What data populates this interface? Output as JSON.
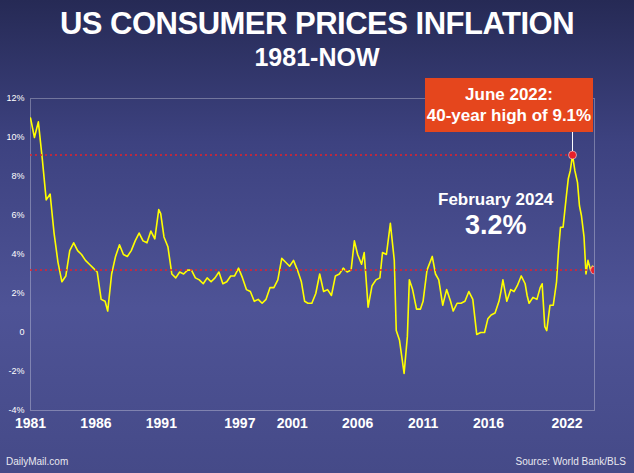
{
  "chart_data": {
    "type": "line",
    "title": "US CONSUMER PRICES INFLATION",
    "subtitle": "1981-NOW",
    "color": "#ffff00",
    "grid": false,
    "x": [
      1981.0,
      1981.3,
      1981.6,
      1981.9,
      1982.2,
      1982.5,
      1982.8,
      1983.1,
      1983.4,
      1983.7,
      1984.0,
      1984.3,
      1984.6,
      1984.9,
      1985.2,
      1985.5,
      1985.8,
      1986.1,
      1986.4,
      1986.7,
      1986.9,
      1987.2,
      1987.5,
      1987.8,
      1988.1,
      1988.4,
      1988.7,
      1989.0,
      1989.3,
      1989.6,
      1989.9,
      1990.2,
      1990.5,
      1990.8,
      1990.95,
      1991.2,
      1991.5,
      1991.8,
      1992.1,
      1992.4,
      1992.7,
      1993.0,
      1993.3,
      1993.6,
      1993.9,
      1994.2,
      1994.5,
      1994.8,
      1995.1,
      1995.4,
      1995.7,
      1996.0,
      1996.3,
      1996.6,
      1996.9,
      1997.2,
      1997.5,
      1997.8,
      1998.1,
      1998.4,
      1998.7,
      1999.0,
      1999.3,
      1999.6,
      1999.9,
      2000.2,
      2000.5,
      2000.8,
      2001.1,
      2001.4,
      2001.7,
      2001.95,
      2002.2,
      2002.5,
      2002.8,
      2003.1,
      2003.4,
      2003.7,
      2004.0,
      2004.3,
      2004.6,
      2004.9,
      2005.2,
      2005.5,
      2005.75,
      2006.0,
      2006.3,
      2006.5,
      2006.8,
      2007.1,
      2007.4,
      2007.7,
      2007.9,
      2008.2,
      2008.5,
      2008.8,
      2008.95,
      2009.2,
      2009.55,
      2009.8,
      2009.95,
      2010.2,
      2010.5,
      2010.8,
      2011.0,
      2011.3,
      2011.7,
      2011.95,
      2012.2,
      2012.5,
      2012.8,
      2013.1,
      2013.3,
      2013.6,
      2013.9,
      2014.2,
      2014.5,
      2014.8,
      2014.95,
      2015.1,
      2015.4,
      2015.7,
      2015.95,
      2016.2,
      2016.5,
      2016.8,
      2016.95,
      2017.1,
      2017.4,
      2017.7,
      2017.95,
      2018.2,
      2018.5,
      2018.8,
      2018.95,
      2019.1,
      2019.4,
      2019.7,
      2019.95,
      2020.1,
      2020.3,
      2020.45,
      2020.7,
      2020.95,
      2021.2,
      2021.35,
      2021.5,
      2021.7,
      2021.95,
      2022.1,
      2022.25,
      2022.42,
      2022.6,
      2022.8,
      2022.95,
      2023.1,
      2023.3,
      2023.45,
      2023.6,
      2023.8,
      2023.95,
      2024.1
    ],
    "values": [
      11.0,
      10.0,
      10.8,
      8.9,
      6.8,
      7.1,
      5.1,
      3.6,
      2.6,
      2.9,
      4.2,
      4.6,
      4.2,
      4.0,
      3.7,
      3.5,
      3.3,
      3.1,
      1.7,
      1.6,
      1.1,
      3.0,
      3.9,
      4.5,
      4.0,
      3.9,
      4.2,
      4.7,
      5.1,
      4.7,
      4.6,
      5.2,
      4.8,
      6.3,
      6.1,
      4.9,
      4.4,
      3.0,
      2.8,
      3.1,
      3.0,
      3.2,
      3.2,
      2.8,
      2.7,
      2.5,
      2.8,
      2.6,
      2.8,
      3.1,
      2.5,
      2.6,
      2.9,
      2.9,
      3.3,
      2.8,
      2.2,
      2.1,
      1.6,
      1.7,
      1.5,
      1.7,
      2.3,
      2.3,
      2.7,
      3.8,
      3.6,
      3.4,
      3.7,
      3.2,
      2.6,
      1.6,
      1.5,
      1.5,
      2.0,
      3.0,
      2.1,
      2.2,
      1.9,
      2.9,
      3.0,
      3.3,
      3.1,
      3.2,
      4.7,
      4.0,
      3.5,
      4.1,
      1.3,
      2.4,
      2.7,
      2.8,
      4.1,
      4.0,
      5.6,
      3.7,
      0.1,
      -0.4,
      -2.1,
      -0.2,
      2.7,
      2.2,
      1.2,
      1.2,
      1.6,
      3.2,
      3.9,
      3.0,
      2.7,
      1.4,
      2.2,
      1.6,
      1.1,
      1.5,
      1.5,
      1.6,
      2.1,
      1.7,
      0.8,
      -0.1,
      0.0,
      0.0,
      0.7,
      0.9,
      1.0,
      1.6,
      2.1,
      2.7,
      1.6,
      2.2,
      2.1,
      2.4,
      2.9,
      2.5,
      1.9,
      1.5,
      1.8,
      1.7,
      2.3,
      2.5,
      0.3,
      0.1,
      1.4,
      1.4,
      2.6,
      4.2,
      5.4,
      5.4,
      7.0,
      7.9,
      8.3,
      9.1,
      8.3,
      7.7,
      6.5,
      6.0,
      4.9,
      3.0,
      3.7,
      3.2,
      3.4,
      3.2
    ],
    "xlim": [
      1981.0,
      2024.1
    ],
    "xticks": [
      1981,
      1986,
      1991,
      1997,
      2001,
      2006,
      2011,
      2016,
      2022
    ],
    "ylim": [
      -4,
      12
    ],
    "yticks": [
      {
        "value": 12,
        "label": "12%"
      },
      {
        "value": 10,
        "label": "10%"
      },
      {
        "value": 8,
        "label": "8%"
      },
      {
        "value": 6,
        "label": "6%"
      },
      {
        "value": 4,
        "label": "4%"
      },
      {
        "value": 2,
        "label": "2%"
      },
      0,
      {
        "value": -2,
        "label": "-2%"
      },
      {
        "value": -4,
        "label": "-4%"
      }
    ],
    "annotations": [
      {
        "text": [
          "June 2022:",
          "40-year high of 9.1%"
        ],
        "x": 2022.42,
        "y": 9.1,
        "color": "#e5461d"
      },
      {
        "text": [
          "February 2024",
          "3.2%"
        ],
        "x": 2024.1,
        "y": 3.2,
        "color": "#ffffff"
      }
    ],
    "reference_line_color": "#e8202a",
    "credit": "DailyMail.com",
    "source": "Source: World Bank/BLS"
  }
}
